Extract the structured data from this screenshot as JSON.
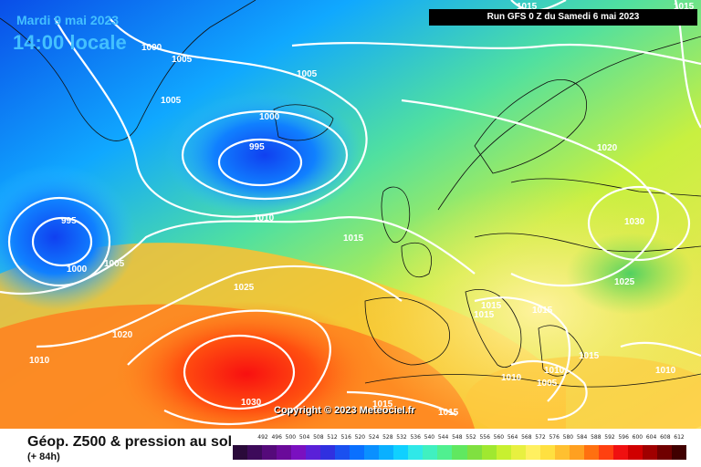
{
  "header": {
    "date": "Mardi 9 mai 2023",
    "time": "14:00 locale",
    "run": "Run GFS 0 Z du Samedi 6 mai 2023"
  },
  "copyright": "Copyright © 2023 Meteociel.fr",
  "footer": {
    "title": "Géop. Z500 & pression au sol",
    "subtitle": "(+ 84h)"
  },
  "scale": {
    "values": [
      "492",
      "496",
      "500",
      "504",
      "508",
      "512",
      "516",
      "520",
      "524",
      "528",
      "532",
      "536",
      "540",
      "544",
      "548",
      "552",
      "556",
      "560",
      "564",
      "568",
      "572",
      "576",
      "580",
      "584",
      "588",
      "592",
      "596",
      "600",
      "604",
      "608",
      "612"
    ],
    "colors": [
      "#2a0a3a",
      "#3d0a5a",
      "#550a7a",
      "#6a0a9a",
      "#7a10c0",
      "#5a20d8",
      "#3030e0",
      "#1a50f0",
      "#0a70ff",
      "#0a90ff",
      "#0ab0ff",
      "#10d0ff",
      "#30e8e8",
      "#40f0c0",
      "#50f090",
      "#60e860",
      "#80e040",
      "#a0e830",
      "#c8f030",
      "#e8f040",
      "#fff060",
      "#ffe040",
      "#ffc030",
      "#ffa020",
      "#ff7010",
      "#ff4010",
      "#f01010",
      "#d00000",
      "#a00000",
      "#700000",
      "#400000"
    ]
  },
  "pressure_labels": [
    {
      "text": "1000"
    },
    {
      "text": "1005"
    },
    {
      "text": "1005"
    },
    {
      "text": "1005"
    },
    {
      "text": "1000"
    },
    {
      "text": "995"
    },
    {
      "text": "995"
    },
    {
      "text": "1000"
    },
    {
      "text": "1005"
    },
    {
      "text": "1010"
    },
    {
      "text": "1015"
    },
    {
      "text": "1025"
    },
    {
      "text": "1020"
    },
    {
      "text": "1010"
    },
    {
      "text": "1030"
    },
    {
      "text": "1020"
    },
    {
      "text": "1030"
    },
    {
      "text": "1025"
    },
    {
      "text": "1015"
    },
    {
      "text": "1015"
    },
    {
      "text": "1015"
    },
    {
      "text": "1015"
    },
    {
      "text": "1010"
    },
    {
      "text": "1010"
    },
    {
      "text": "1005"
    },
    {
      "text": "1010"
    },
    {
      "text": "1015"
    },
    {
      "text": "1015"
    },
    {
      "text": "1015"
    },
    {
      "text": "1015"
    }
  ]
}
